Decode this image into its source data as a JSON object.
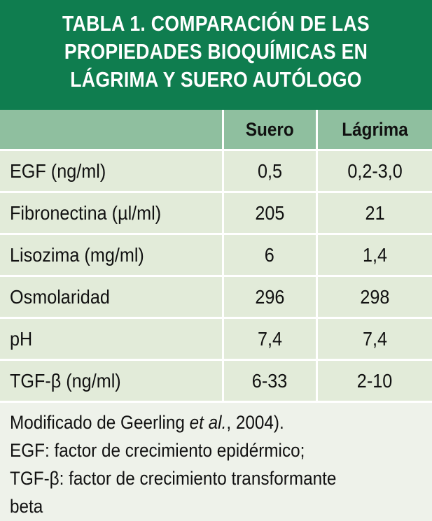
{
  "title": {
    "line1": "TABLA 1. COMPARACIÓN DE LAS",
    "line2": "PROPIEDADES BIOQUÍMICAS EN",
    "line3": "LÁGRIMA Y SUERO AUTÓLOGO"
  },
  "table": {
    "headers": [
      "",
      "Suero",
      "Lágrima"
    ],
    "rows": [
      {
        "label": "EGF (ng/ml)",
        "suero": "0,5",
        "lagrima": "0,2-3,0"
      },
      {
        "label": "Fibronectina (µl/ml)",
        "suero": "205",
        "lagrima": "21"
      },
      {
        "label": "Lisozima (mg/ml)",
        "suero": "6",
        "lagrima": "1,4"
      },
      {
        "label": "Osmolaridad",
        "suero": "296",
        "lagrima": "298"
      },
      {
        "label": "pH",
        "suero": "7,4",
        "lagrima": "7,4"
      },
      {
        "label": "TGF-β (ng/ml)",
        "suero": "6-33",
        "lagrima": "2-10"
      }
    ]
  },
  "footnote": {
    "source_prefix": "Modificado de Geerling ",
    "source_italic": "et al.",
    "source_suffix": ", 2004).",
    "line2": "EGF: factor de crecimiento epidérmico;",
    "line3": "TGF-β: factor de crecimiento transformante",
    "line4": "beta"
  },
  "colors": {
    "title_bg": "#0f7d4f",
    "header_bg": "#8fbf9f",
    "row_bg": "#e2ebd9",
    "page_bg": "#eef2ea"
  }
}
